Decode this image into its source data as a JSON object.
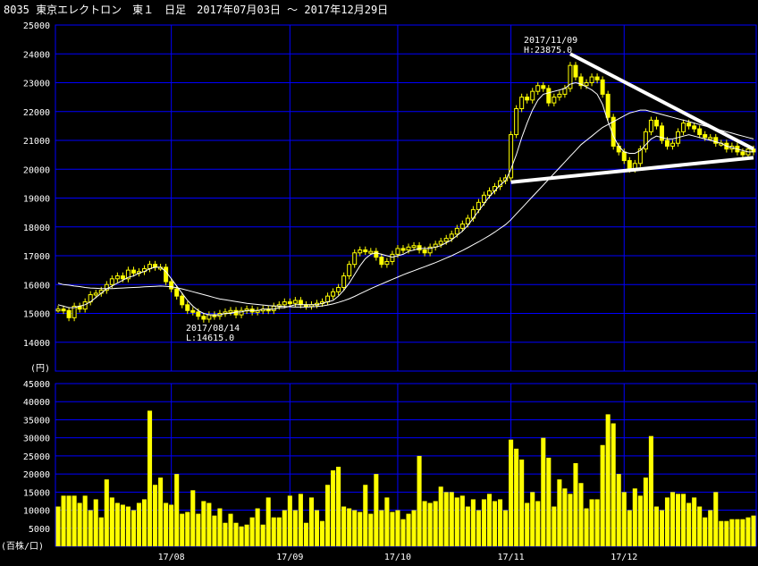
{
  "title": "8035 東京エレクトロン　東１　日足　2017年07月03日 ～ 2017年12月29日",
  "colors": {
    "background": "#000000",
    "grid": "#0000ff",
    "candle": "#ffff00",
    "ma": "#ffffff",
    "volume": "#ffff00",
    "text": "#ffffff",
    "trendline": "#ffffff"
  },
  "price_unit_label": "(円)",
  "volume_unit_label": "(百株/口)",
  "annotations": {
    "high": {
      "date": "2017/11/09",
      "label": "H:23875.0"
    },
    "low": {
      "date": "2017/08/14",
      "label": "L:14615.0"
    }
  },
  "chart_data": [
    {
      "type": "candlestick",
      "title": "8035 東京エレクトロン　東１　日足　2017年07月03日 ～ 2017年12月29日",
      "ylabel": "(円)",
      "ylim": [
        13000,
        25000
      ],
      "yticks": [
        14000,
        15000,
        16000,
        17000,
        18000,
        19000,
        20000,
        21000,
        22000,
        23000,
        24000,
        25000
      ],
      "xtick_labels": [
        {
          "label": "17/08",
          "index": 21
        },
        {
          "label": "17/09",
          "index": 43
        },
        {
          "label": "17/10",
          "index": 63
        },
        {
          "label": "17/11",
          "index": 84
        },
        {
          "label": "17/12",
          "index": 105
        }
      ],
      "grid": true,
      "close": [
        15150,
        15100,
        14850,
        15250,
        15150,
        15400,
        15650,
        15700,
        15800,
        16000,
        16200,
        16300,
        16200,
        16500,
        16400,
        16450,
        16550,
        16700,
        16600,
        16600,
        16100,
        15850,
        15600,
        15300,
        15100,
        15050,
        14900,
        14800,
        14950,
        14900,
        15000,
        15050,
        15100,
        14950,
        15100,
        15150,
        15050,
        15100,
        15150,
        15100,
        15250,
        15300,
        15400,
        15350,
        15450,
        15300,
        15250,
        15300,
        15350,
        15400,
        15600,
        15750,
        15900,
        16300,
        16700,
        17100,
        17200,
        17150,
        17150,
        16950,
        16700,
        16800,
        17050,
        17250,
        17200,
        17300,
        17350,
        17200,
        17100,
        17300,
        17400,
        17500,
        17600,
        17750,
        17950,
        18100,
        18300,
        18600,
        18850,
        19100,
        19250,
        19400,
        19600,
        19700,
        21200,
        22100,
        22500,
        22400,
        22700,
        22900,
        22800,
        22300,
        22500,
        22600,
        22800,
        23600,
        23200,
        22900,
        23000,
        23200,
        23100,
        22600,
        21800,
        20800,
        20600,
        20300,
        20000,
        20200,
        20700,
        21300,
        21700,
        21500,
        21000,
        20800,
        20900,
        21300,
        21600,
        21500,
        21400,
        21200,
        21100,
        21100,
        20900,
        20900,
        20700,
        20800,
        20600,
        20500,
        20700,
        20600
      ],
      "ma_short_approx": [
        15300,
        15250,
        15200,
        15200,
        15250,
        15300,
        15400,
        15550,
        15700,
        15850,
        15950,
        16050,
        16150,
        16250,
        16300,
        16400,
        16450,
        16550,
        16600,
        16600,
        16450,
        16200,
        15950,
        15700,
        15450,
        15250,
        15100,
        15000,
        14950,
        14950,
        14950,
        15000,
        15000,
        15050,
        15050,
        15100,
        15100,
        15100,
        15150,
        15150,
        15150,
        15200,
        15200,
        15250,
        15300,
        15300,
        15300,
        15300,
        15300,
        15350,
        15400,
        15450,
        15600,
        15800,
        16050,
        16350,
        16650,
        16900,
        17050,
        17100,
        17050,
        17000,
        16950,
        17000,
        17050,
        17150,
        17200,
        17250,
        17250,
        17250,
        17300,
        17350,
        17450,
        17550,
        17700,
        17850,
        18050,
        18300,
        18550,
        18800,
        19050,
        19250,
        19450,
        19600,
        20000,
        20500,
        21100,
        21600,
        22050,
        22400,
        22600,
        22650,
        22700,
        22750,
        22800,
        22950,
        23000,
        22950,
        22850,
        22750,
        22600,
        22250,
        21650,
        21150,
        20800,
        20600,
        20550,
        20550,
        20650,
        20850,
        21050,
        21150,
        21100,
        21050,
        21050,
        21100,
        21150,
        21200,
        21150,
        21100,
        21050,
        21000,
        20950,
        20900,
        20800,
        20750,
        20700,
        20650,
        20600,
        20600
      ],
      "ma_long_approx": [
        16050,
        16000,
        15980,
        15950,
        15930,
        15900,
        15880,
        15870,
        15860,
        15860,
        15860,
        15870,
        15880,
        15890,
        15900,
        15910,
        15920,
        15930,
        15940,
        15950,
        15940,
        15920,
        15890,
        15850,
        15800,
        15750,
        15700,
        15650,
        15600,
        15550,
        15500,
        15470,
        15440,
        15410,
        15380,
        15350,
        15330,
        15310,
        15290,
        15270,
        15260,
        15250,
        15240,
        15230,
        15220,
        15220,
        15220,
        15230,
        15240,
        15260,
        15290,
        15330,
        15380,
        15440,
        15510,
        15590,
        15680,
        15770,
        15860,
        15940,
        16020,
        16100,
        16180,
        16260,
        16340,
        16410,
        16480,
        16550,
        16620,
        16690,
        16760,
        16840,
        16920,
        17000,
        17090,
        17180,
        17280,
        17380,
        17480,
        17590,
        17700,
        17820,
        17950,
        18080,
        18250,
        18450,
        18650,
        18850,
        19050,
        19250,
        19450,
        19650,
        19850,
        20050,
        20250,
        20450,
        20650,
        20850,
        21000,
        21150,
        21300,
        21450,
        21550,
        21650,
        21750,
        21850,
        21950,
        22000,
        22050,
        22050,
        22000,
        21950,
        21900,
        21850,
        21800,
        21750,
        21700,
        21650,
        21600,
        21550,
        21500,
        21450,
        21400,
        21350,
        21300,
        21250,
        21200,
        21150,
        21100,
        21050
      ],
      "trendline_upper": [
        {
          "index": 95,
          "value": 24000
        },
        {
          "index": 129,
          "value": 20700
        }
      ],
      "trendline_lower": [
        {
          "index": 84,
          "value": 19550
        },
        {
          "index": 129,
          "value": 20400
        }
      ]
    },
    {
      "type": "bar",
      "title": "",
      "ylabel": "(百株/口)",
      "ylim": [
        0,
        45000
      ],
      "yticks": [
        5000,
        10000,
        15000,
        20000,
        25000,
        30000,
        35000,
        40000,
        45000
      ],
      "grid": true,
      "values": [
        11000,
        14000,
        14000,
        14000,
        12000,
        14000,
        10000,
        13000,
        8000,
        18500,
        13500,
        12000,
        11500,
        11000,
        10000,
        12000,
        13000,
        37500,
        17000,
        19000,
        12000,
        11500,
        20000,
        9000,
        9500,
        15500,
        9000,
        12500,
        12000,
        8500,
        10500,
        6500,
        9000,
        6500,
        5500,
        6000,
        8000,
        10500,
        6000,
        13500,
        8000,
        8000,
        10000,
        14000,
        10000,
        14500,
        6500,
        13500,
        10000,
        7000,
        17000,
        21000,
        22000,
        11000,
        10500,
        10000,
        9500,
        17000,
        9000,
        20000,
        10000,
        13500,
        9500,
        10000,
        7500,
        9000,
        10000,
        25000,
        12500,
        12000,
        12500,
        16500,
        15000,
        15000,
        13500,
        14000,
        11000,
        13000,
        10000,
        13000,
        14500,
        12500,
        13000,
        10000,
        29500,
        27000,
        24000,
        12000,
        15000,
        12500,
        30000,
        24500,
        11000,
        18500,
        16000,
        14500,
        23000,
        17500,
        10500,
        13000,
        13000,
        28000,
        36500,
        34000,
        20000,
        15000,
        10000,
        16000,
        14000,
        19000,
        30500,
        11000,
        10000,
        13500,
        15000,
        14500,
        14500,
        12000,
        13500,
        11000,
        8000,
        10000,
        15000,
        7000,
        7000,
        7500,
        7500,
        7500,
        8000,
        8500
      ]
    }
  ]
}
